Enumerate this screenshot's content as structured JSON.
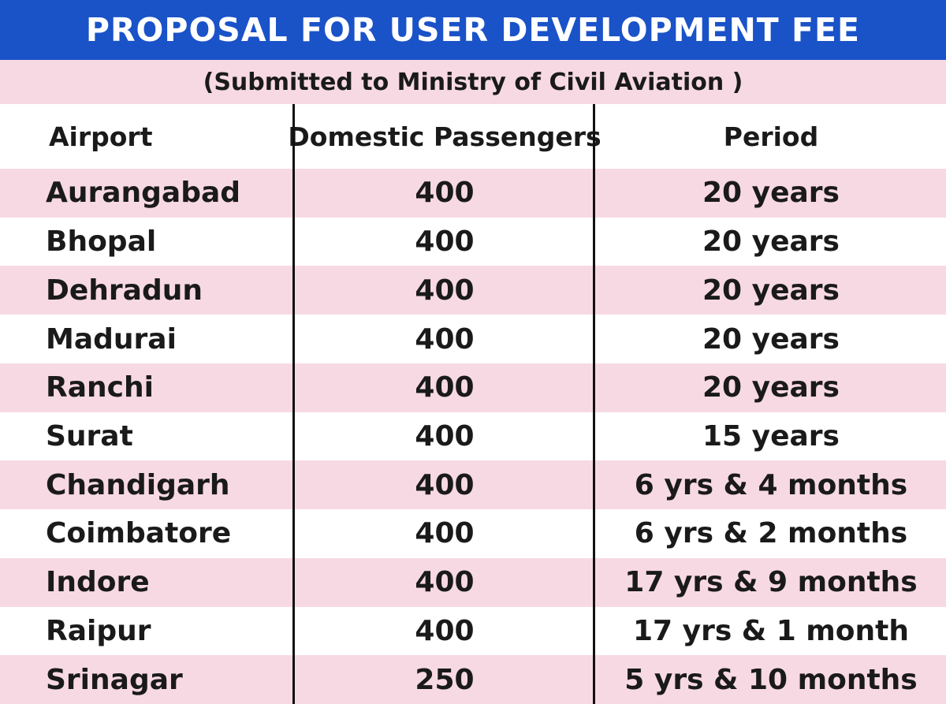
{
  "chart_data": {
    "type": "table",
    "title": "PROPOSAL FOR USER DEVELOPMENT FEE",
    "subtitle": "(Submitted to Ministry of Civil Aviation )",
    "columns": [
      "Airport",
      "Domestic Passengers",
      "Period"
    ],
    "rows": [
      {
        "airport": "Aurangabad",
        "domestic": "400",
        "period": "20 years"
      },
      {
        "airport": "Bhopal",
        "domestic": "400",
        "period": "20 years"
      },
      {
        "airport": "Dehradun",
        "domestic": "400",
        "period": "20 years"
      },
      {
        "airport": "Madurai",
        "domestic": "400",
        "period": "20 years"
      },
      {
        "airport": "Ranchi",
        "domestic": "400",
        "period": "20 years"
      },
      {
        "airport": "Surat",
        "domestic": "400",
        "period": "15 years"
      },
      {
        "airport": "Chandigarh",
        "domestic": "400",
        "period": "6 yrs & 4 months"
      },
      {
        "airport": "Coimbatore",
        "domestic": "400",
        "period": "6 yrs & 2 months"
      },
      {
        "airport": "Indore",
        "domestic": "400",
        "period": "17 yrs & 9 months"
      },
      {
        "airport": "Raipur",
        "domestic": "400",
        "period": "17 yrs & 1 month"
      },
      {
        "airport": "Srinagar",
        "domestic": "250",
        "period": "5 yrs & 10 months"
      }
    ]
  },
  "colors": {
    "title_background": "#1a52c8",
    "stripe": "#f7d9e3",
    "row_plain": "#ffffff",
    "text": "#1a1a1a",
    "divider": "#111111"
  }
}
